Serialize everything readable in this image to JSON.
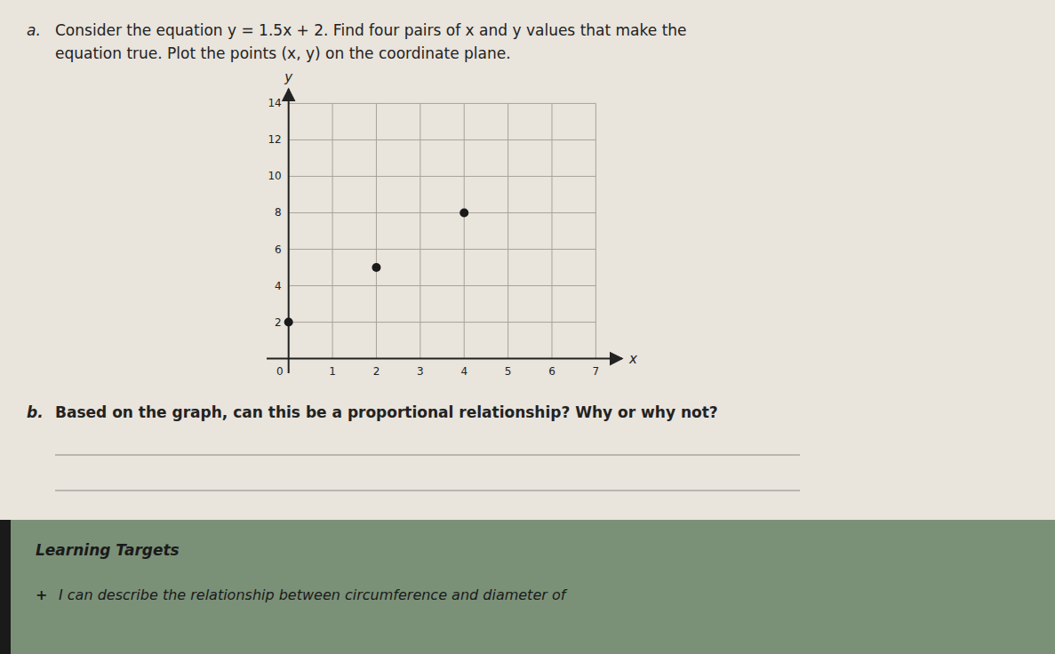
{
  "chart_data": {
    "type": "scatter",
    "title": [
      "Consider the equation y = 1.5x + 2. Find four pairs of x and y values that make the",
      "equation true. Plot the points (x, y) on the coordinate plane."
    ],
    "annotations": [
      "a.",
      "b.",
      "Based on the graph, can this be a proportional relationship? Why or why not?",
      "Learning Targets",
      "+",
      "I can describe the relationship between circumference and diameter of"
    ],
    "x_label": "x",
    "y_label": "y",
    "x": [
      0,
      2,
      4
    ],
    "values": [
      2,
      5,
      8
    ],
    "color": "#1a1a1a",
    "marker": "circle",
    "xlim": [
      -0.5,
      7.6
    ],
    "ylim": [
      -0.8,
      14.8
    ],
    "xticks": [
      0,
      1,
      2,
      3,
      4,
      5,
      6,
      7
    ],
    "yticks": [
      2,
      4,
      6,
      8,
      10,
      12,
      14
    ],
    "grid": true
  }
}
